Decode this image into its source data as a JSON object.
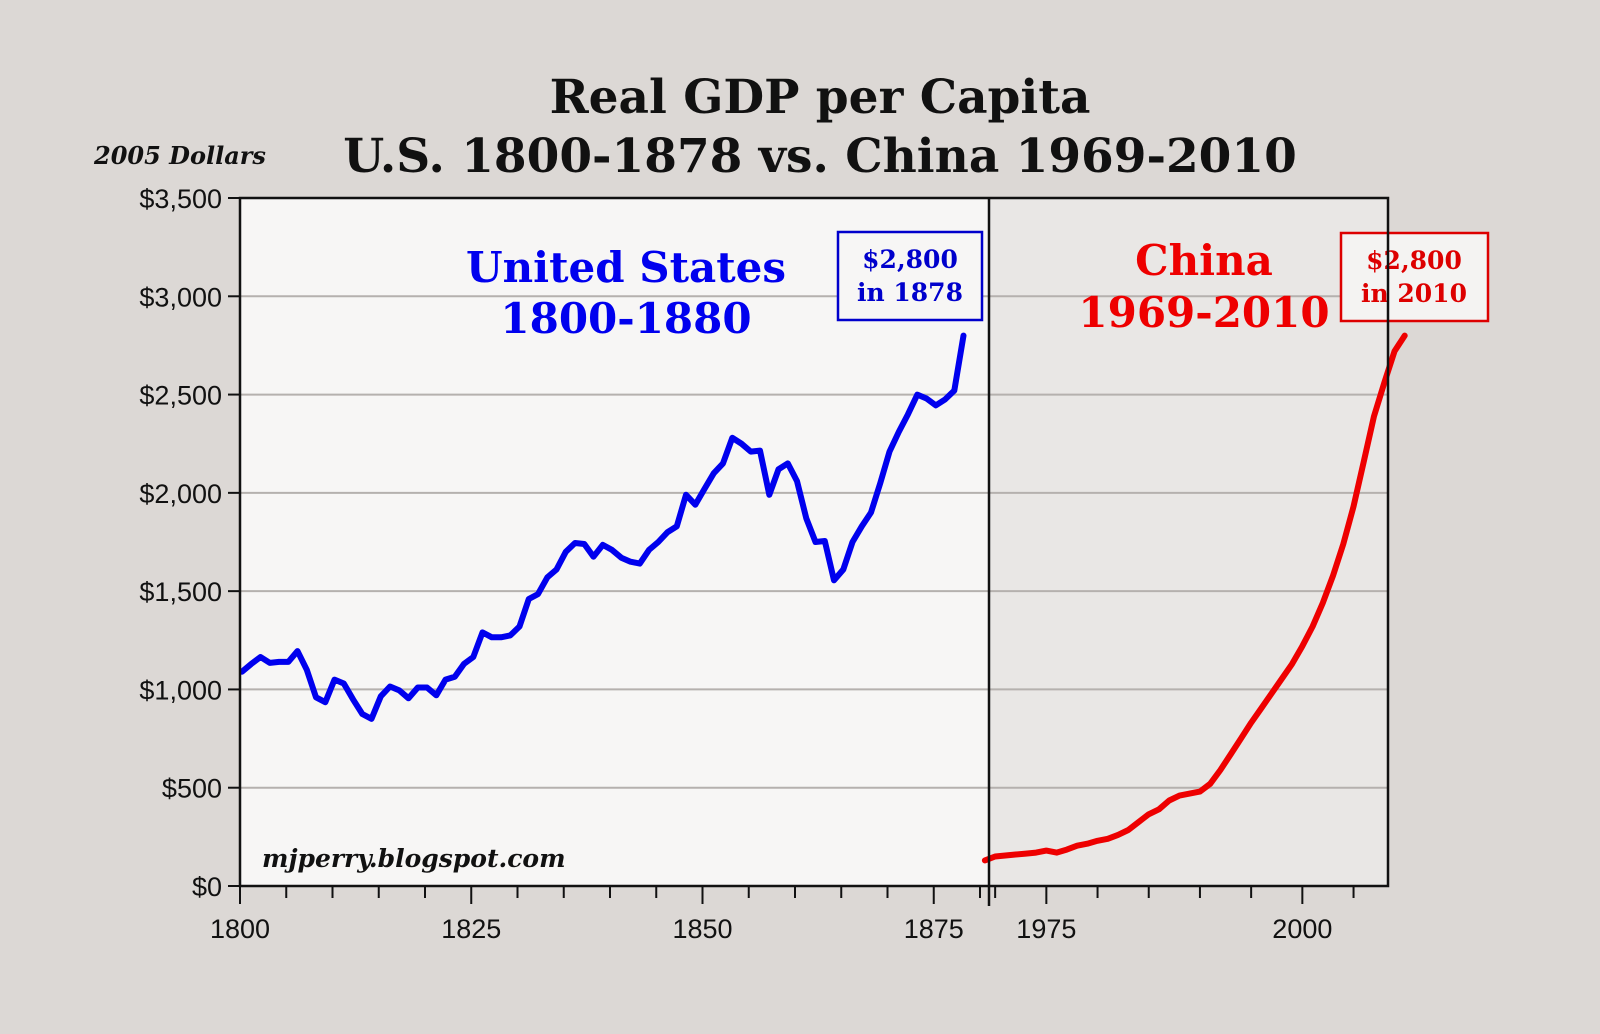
{
  "chart_data": {
    "type": "line",
    "title": "Real GDP per Capita",
    "subtitle": "U.S. 1800-1878 vs. China 1969-2010",
    "ylabel": "2005 Dollars",
    "xlabel": "",
    "ylim": [
      0,
      3500
    ],
    "yticks": [
      0,
      500,
      1000,
      1500,
      2000,
      2500,
      3000,
      3500
    ],
    "ytick_labels": [
      "$0",
      "$500",
      "$1,000",
      "$1,500",
      "$2,000",
      "$2,500",
      "$3,000",
      "$3,500"
    ],
    "grid": true,
    "watermark": "mjperry.blogspot.com",
    "panels": [
      {
        "name": "United States",
        "label_line1": "United States",
        "label_line2": "1800-1880",
        "color": "#0000ee",
        "background": "#f7f6f5",
        "xlim": [
          1800,
          1881
        ],
        "xticks_major": [
          1800,
          1825,
          1850,
          1875
        ],
        "xtick_labels": [
          "1800",
          "1825",
          "1850",
          "1875"
        ],
        "xticks_minor_step": 5,
        "callout_line1": "$2,800",
        "callout_line2": "in 1878",
        "x": [
          1800,
          1801,
          1802,
          1803,
          1804,
          1805,
          1806,
          1807,
          1808,
          1809,
          1810,
          1811,
          1812,
          1813,
          1814,
          1815,
          1816,
          1817,
          1818,
          1819,
          1820,
          1821,
          1822,
          1823,
          1824,
          1825,
          1826,
          1827,
          1828,
          1829,
          1830,
          1831,
          1832,
          1833,
          1834,
          1835,
          1836,
          1837,
          1838,
          1839,
          1840,
          1841,
          1842,
          1843,
          1844,
          1845,
          1846,
          1847,
          1848,
          1849,
          1850,
          1851,
          1852,
          1853,
          1854,
          1855,
          1856,
          1857,
          1858,
          1859,
          1860,
          1861,
          1862,
          1863,
          1864,
          1865,
          1866,
          1867,
          1868,
          1869,
          1870,
          1871,
          1872,
          1873,
          1874,
          1875,
          1876,
          1877,
          1878
        ],
        "values": [
          1090,
          1130,
          1165,
          1135,
          1140,
          1140,
          1195,
          1100,
          960,
          935,
          1050,
          1030,
          950,
          875,
          850,
          965,
          1015,
          995,
          955,
          1010,
          1010,
          970,
          1050,
          1065,
          1130,
          1165,
          1290,
          1265,
          1265,
          1275,
          1320,
          1460,
          1485,
          1570,
          1610,
          1700,
          1745,
          1740,
          1675,
          1735,
          1710,
          1670,
          1650,
          1640,
          1710,
          1750,
          1800,
          1830,
          1990,
          1940,
          2020,
          2100,
          2150,
          2280,
          2250,
          2210,
          2215,
          1990,
          2120,
          2150,
          2060,
          1870,
          1750,
          1755,
          1555,
          1610,
          1750,
          1830,
          1900,
          2050,
          2210,
          2310,
          2400,
          2500,
          2480,
          2445,
          2475,
          2520,
          2800
        ]
      },
      {
        "name": "China",
        "label_line1": "China",
        "label_line2": "1969-2010",
        "color": "#ee0000",
        "background": "#e9e7e5",
        "xlim": [
          1969,
          2008
        ],
        "xticks_major": [
          1975,
          2000
        ],
        "xtick_labels": [
          "1975",
          "2000"
        ],
        "xticks_minor_step": 5,
        "callout_line1": "$2,800",
        "callout_line2": "in 2010",
        "x": [
          1969,
          1970,
          1971,
          1972,
          1973,
          1974,
          1975,
          1976,
          1977,
          1978,
          1979,
          1980,
          1981,
          1982,
          1983,
          1984,
          1985,
          1986,
          1987,
          1988,
          1989,
          1990,
          1991,
          1992,
          1993,
          1994,
          1995,
          1996,
          1997,
          1998,
          1999,
          2000,
          2001,
          2002,
          2003,
          2004,
          2005,
          2006,
          2007,
          2008,
          2009,
          2010
        ],
        "values": [
          130,
          150,
          155,
          160,
          165,
          170,
          180,
          170,
          185,
          205,
          215,
          230,
          240,
          260,
          285,
          325,
          365,
          390,
          435,
          460,
          470,
          480,
          520,
          590,
          670,
          750,
          830,
          905,
          980,
          1055,
          1130,
          1220,
          1320,
          1440,
          1580,
          1740,
          1930,
          2160,
          2390,
          2560,
          2720,
          2800
        ]
      }
    ]
  }
}
